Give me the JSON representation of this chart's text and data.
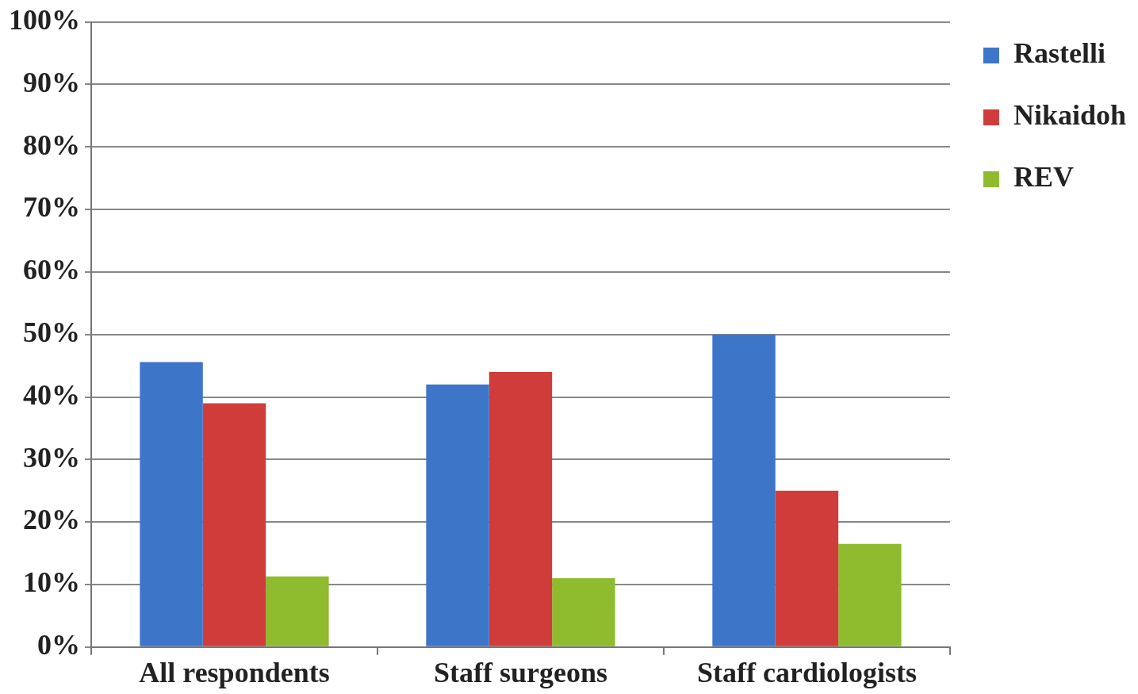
{
  "chart_data": {
    "type": "bar",
    "categories": [
      "All respondents",
      "Staff surgeons",
      "Staff cardiologists"
    ],
    "series": [
      {
        "name": "Rastelli",
        "color": "#3d75c9",
        "values": [
          45.6,
          42,
          50
        ]
      },
      {
        "name": "Nikaidoh",
        "color": "#d03c3a",
        "values": [
          39,
          44,
          25
        ]
      },
      {
        "name": "REV",
        "color": "#8fbb2e",
        "values": [
          11.3,
          11,
          16.5
        ]
      }
    ],
    "ylim": [
      0,
      100
    ],
    "yticks": [
      {
        "value": 0,
        "label": "0%"
      },
      {
        "value": 10,
        "label": "10%"
      },
      {
        "value": 20,
        "label": "20%"
      },
      {
        "value": 30,
        "label": "30%"
      },
      {
        "value": 40,
        "label": "40%"
      },
      {
        "value": 50,
        "label": "50%"
      },
      {
        "value": 60,
        "label": "60%"
      },
      {
        "value": 70,
        "label": "70%"
      },
      {
        "value": 80,
        "label": "80%"
      },
      {
        "value": 90,
        "label": "90%"
      },
      {
        "value": 100,
        "label": "100%"
      }
    ],
    "grid": "y",
    "legend": "right"
  }
}
